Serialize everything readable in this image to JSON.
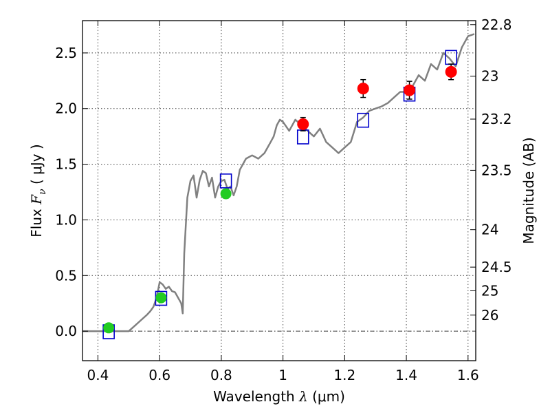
{
  "chart_data": {
    "type": "scatter",
    "x_label": {
      "prefix": "Wavelength  ",
      "symbol": "λ",
      "units": " (μm)"
    },
    "y_label": {
      "prefix": "Flux  ",
      "symbol": "F",
      "subscript": "ν",
      "units": "  ( μJy )"
    },
    "y2_label": "Magnitude (AB)",
    "xlim": [
      0.35,
      1.625
    ],
    "ylim": [
      -0.265,
      2.79
    ],
    "grid": true,
    "x_ticks": [
      {
        "v": 0.4,
        "label": "0.4"
      },
      {
        "v": 0.6,
        "label": "0.6"
      },
      {
        "v": 0.8,
        "label": "0.8"
      },
      {
        "v": 1.0,
        "label": "1"
      },
      {
        "v": 1.2,
        "label": "1.2"
      },
      {
        "v": 1.4,
        "label": "1.4"
      },
      {
        "v": 1.6,
        "label": "1.6"
      }
    ],
    "y_ticks": [
      {
        "v": 0.0,
        "label": "0.0"
      },
      {
        "v": 0.5,
        "label": "0.5"
      },
      {
        "v": 1.0,
        "label": "1.0"
      },
      {
        "v": 1.5,
        "label": "1.5"
      },
      {
        "v": 2.0,
        "label": "2.0"
      },
      {
        "v": 2.5,
        "label": "2.5"
      }
    ],
    "y2_ticks": [
      {
        "mag": 22.8,
        "label": "22.8"
      },
      {
        "mag": 23.0,
        "label": "23"
      },
      {
        "mag": 23.2,
        "label": "23.2"
      },
      {
        "mag": 23.5,
        "label": "23.5"
      },
      {
        "mag": 24.0,
        "label": "24"
      },
      {
        "mag": 24.5,
        "label": "24.5"
      },
      {
        "mag": 25.0,
        "label": "25"
      },
      {
        "mag": 26.0,
        "label": "26"
      }
    ],
    "zero_line": {
      "y": 0,
      "color": "#444444"
    },
    "colors": {
      "model": "#808080",
      "model_photometry": "#0000cc",
      "optical_points": "#22cc22",
      "nir_points": "#ff0000",
      "errorbar": "#000000"
    },
    "model_spectrum": {
      "x": [
        0.35,
        0.4,
        0.45,
        0.5,
        0.52,
        0.54,
        0.56,
        0.57,
        0.58,
        0.59,
        0.6,
        0.61,
        0.62,
        0.63,
        0.64,
        0.65,
        0.66,
        0.67,
        0.675,
        0.68,
        0.69,
        0.7,
        0.71,
        0.72,
        0.73,
        0.74,
        0.75,
        0.76,
        0.77,
        0.78,
        0.79,
        0.8,
        0.81,
        0.82,
        0.83,
        0.84,
        0.85,
        0.86,
        0.87,
        0.88,
        0.9,
        0.92,
        0.94,
        0.96,
        0.97,
        0.98,
        0.99,
        1.0,
        1.02,
        1.04,
        1.06,
        1.08,
        1.1,
        1.12,
        1.14,
        1.16,
        1.18,
        1.2,
        1.22,
        1.24,
        1.26,
        1.28,
        1.3,
        1.32,
        1.34,
        1.36,
        1.38,
        1.4,
        1.42,
        1.44,
        1.46,
        1.48,
        1.5,
        1.52,
        1.54,
        1.56,
        1.58,
        1.6,
        1.62
      ],
      "y": [
        0.0,
        0.0,
        0.0,
        0.0,
        0.05,
        0.1,
        0.15,
        0.18,
        0.22,
        0.3,
        0.44,
        0.42,
        0.38,
        0.4,
        0.36,
        0.35,
        0.3,
        0.25,
        0.16,
        0.7,
        1.2,
        1.35,
        1.4,
        1.2,
        1.36,
        1.44,
        1.42,
        1.3,
        1.38,
        1.2,
        1.3,
        1.35,
        1.36,
        1.28,
        1.3,
        1.22,
        1.3,
        1.45,
        1.5,
        1.55,
        1.58,
        1.55,
        1.6,
        1.7,
        1.75,
        1.85,
        1.9,
        1.88,
        1.8,
        1.9,
        1.85,
        1.8,
        1.75,
        1.82,
        1.7,
        1.65,
        1.6,
        1.65,
        1.7,
        1.88,
        1.92,
        1.98,
        2.0,
        2.02,
        2.05,
        2.1,
        2.15,
        2.15,
        2.2,
        2.3,
        2.25,
        2.4,
        2.35,
        2.5,
        2.45,
        2.38,
        2.55,
        2.65,
        2.67
      ]
    },
    "model_photometry": {
      "x": [
        0.435,
        0.605,
        0.815,
        1.065,
        1.26,
        1.41,
        1.545
      ],
      "y": [
        -0.005,
        0.295,
        1.35,
        1.745,
        1.895,
        2.13,
        2.46
      ]
    },
    "observed_optical": {
      "x": [
        0.435,
        0.605,
        0.815
      ],
      "y": [
        0.03,
        0.3,
        1.235
      ],
      "err": [
        0.04,
        0.03,
        0.04
      ]
    },
    "observed_nir": {
      "x": [
        1.065,
        1.26,
        1.41,
        1.545
      ],
      "y": [
        1.86,
        2.18,
        2.165,
        2.33
      ],
      "err": [
        0.06,
        0.08,
        0.08,
        0.07
      ]
    }
  }
}
